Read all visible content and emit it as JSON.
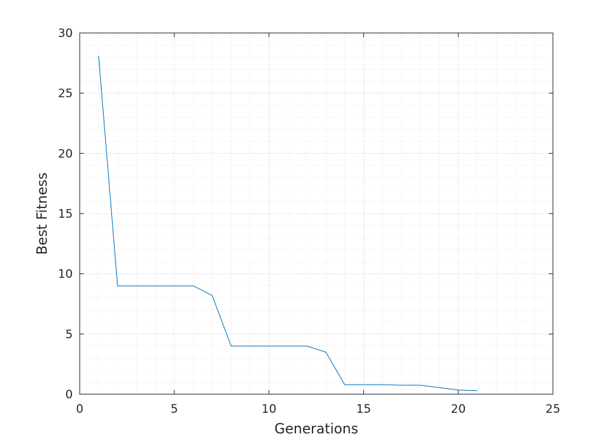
{
  "chart_data": {
    "type": "line",
    "title": "",
    "xlabel": "Generations",
    "ylabel": "Best Fitness",
    "xlim": [
      0,
      25
    ],
    "ylim": [
      0,
      30
    ],
    "xticks": [
      0,
      5,
      10,
      15,
      20,
      25
    ],
    "yticks": [
      0,
      5,
      10,
      15,
      20,
      25,
      30
    ],
    "xtick_labels": [
      "0",
      "5",
      "10",
      "15",
      "20",
      "25"
    ],
    "ytick_labels": [
      "0",
      "5",
      "10",
      "15",
      "20",
      "25",
      "30"
    ],
    "grid": "on",
    "minor_grid": "on",
    "legend": "none",
    "series": [
      {
        "color": "#0072bd",
        "x": [
          1,
          2,
          3,
          4,
          5,
          6,
          7,
          8,
          9,
          10,
          11,
          12,
          13,
          14,
          15,
          16,
          17,
          18,
          19,
          20,
          21
        ],
        "y": [
          28.1,
          9.0,
          9.0,
          9.0,
          9.0,
          9.0,
          8.2,
          4.0,
          4.0,
          4.0,
          4.0,
          4.0,
          3.5,
          0.8,
          0.8,
          0.8,
          0.75,
          0.75,
          0.55,
          0.35,
          0.3
        ]
      }
    ]
  }
}
